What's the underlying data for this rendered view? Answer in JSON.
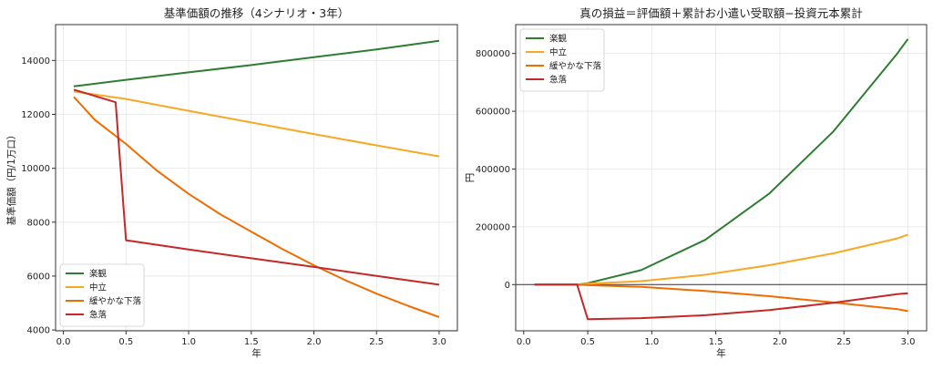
{
  "chart_data": [
    {
      "type": "line",
      "title": "基準価額の推移（4シナリオ・3年）",
      "xlabel": "年",
      "ylabel": "基準価額（円/1万口）",
      "xlim": [
        -0.0625,
        3.1458
      ],
      "ylim": [
        3970,
        15330
      ],
      "xticks": [
        0.0,
        0.5,
        1.0,
        1.5,
        2.0,
        2.5,
        3.0
      ],
      "xtick_labels": [
        "0.0",
        "0.5",
        "1.0",
        "1.5",
        "2.0",
        "2.5",
        "3.0"
      ],
      "yticks": [
        4000,
        6000,
        8000,
        10000,
        12000,
        14000
      ],
      "ytick_labels": [
        "4000",
        "6000",
        "8000",
        "10000",
        "12000",
        "14000"
      ],
      "grid": true,
      "legend_position": "lower-left",
      "series": [
        {
          "name": "楽観",
          "color": "#2e7d32",
          "x": [
            0.083,
            0.5,
            1.0,
            1.5,
            2.0,
            2.5,
            3.0
          ],
          "y": [
            13040,
            13280,
            13560,
            13830,
            14120,
            14410,
            14730
          ]
        },
        {
          "name": "中立",
          "color": "#f9a825",
          "x": [
            0.083,
            0.5,
            1.0,
            1.5,
            2.0,
            2.5,
            3.0
          ],
          "y": [
            12850,
            12570,
            12130,
            11700,
            11270,
            10850,
            10440
          ]
        },
        {
          "name": "緩やかな下落",
          "color": "#ef6c00",
          "x": [
            0.083,
            0.25,
            0.5,
            0.75,
            1.0,
            1.25,
            1.5,
            1.75,
            2.0,
            2.25,
            2.5,
            2.75,
            3.0
          ],
          "y": [
            12650,
            11800,
            10900,
            9900,
            9050,
            8300,
            7650,
            7000,
            6400,
            5850,
            5350,
            4900,
            4480
          ]
        },
        {
          "name": "急落",
          "color": "#c62828",
          "x": [
            0.083,
            0.417,
            0.5,
            1.0,
            1.5,
            2.0,
            2.5,
            3.0
          ],
          "y": [
            12920,
            12450,
            7330,
            6990,
            6660,
            6340,
            6010,
            5680
          ]
        }
      ]
    },
    {
      "type": "line",
      "title": "真の損益＝評価額＋累計お小遣い受取額−投資元本累計",
      "xlabel": "年",
      "ylabel": "円",
      "xlim": [
        -0.0625,
        3.1458
      ],
      "ylim": [
        -160000,
        900000
      ],
      "xticks": [
        0.0,
        0.5,
        1.0,
        1.5,
        2.0,
        2.5,
        3.0
      ],
      "xtick_labels": [
        "0.0",
        "0.5",
        "1.0",
        "1.5",
        "2.0",
        "2.5",
        "3.0"
      ],
      "yticks": [
        0,
        200000,
        400000,
        600000,
        800000
      ],
      "ytick_labels": [
        "0",
        "200000",
        "400000",
        "600000",
        "800000"
      ],
      "zero_line": true,
      "grid": true,
      "legend_position": "upper-left",
      "series": [
        {
          "name": "楽観",
          "color": "#2e7d32",
          "x": [
            0.083,
            0.417,
            0.5,
            0.917,
            1.417,
            1.917,
            2.417,
            2.917,
            3.0
          ],
          "y": [
            0,
            0,
            5000,
            50000,
            155000,
            315000,
            530000,
            800000,
            850000
          ]
        },
        {
          "name": "中立",
          "color": "#f9a825",
          "x": [
            0.083,
            0.417,
            0.5,
            0.917,
            1.417,
            1.917,
            2.417,
            2.917,
            3.0
          ],
          "y": [
            0,
            0,
            3000,
            12000,
            34000,
            67000,
            108000,
            160000,
            173000
          ]
        },
        {
          "name": "緩やかな下落",
          "color": "#ef6c00",
          "x": [
            0.083,
            0.417,
            0.5,
            0.917,
            1.417,
            1.917,
            2.417,
            2.917,
            3.0
          ],
          "y": [
            0,
            0,
            -2000,
            -8000,
            -22000,
            -40000,
            -62000,
            -85000,
            -92000
          ]
        },
        {
          "name": "急落",
          "color": "#c62828",
          "x": [
            0.083,
            0.417,
            0.5,
            0.917,
            1.417,
            1.917,
            2.417,
            2.917,
            3.0
          ],
          "y": [
            0,
            0,
            -120000,
            -116000,
            -106000,
            -88000,
            -63000,
            -33000,
            -30000
          ]
        }
      ]
    }
  ]
}
